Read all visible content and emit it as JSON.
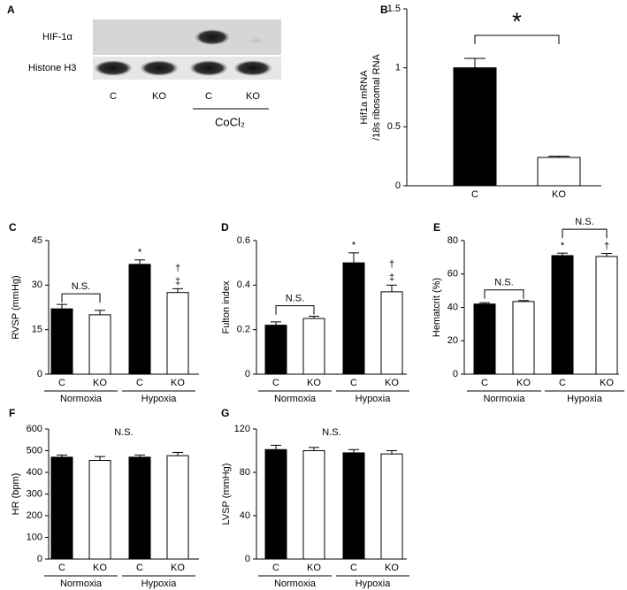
{
  "blot": {
    "panel": "A",
    "rows": [
      "HIF-1α",
      "Histone H3"
    ],
    "lanes": [
      "C",
      "KO",
      "C",
      "KO"
    ],
    "treatment": "CoCl₂"
  },
  "chart_data": [
    {
      "type": "bar",
      "panel": "B",
      "ylabel": [
        "Hif1a mRNA",
        "/18s ribosomal RNA"
      ],
      "categories": [
        "C",
        "KO"
      ],
      "values": [
        1.0,
        0.24
      ],
      "errors": [
        0.08,
        0.01
      ],
      "colors": [
        "#000000",
        "#ffffff"
      ],
      "ylim": [
        0,
        1.5
      ],
      "yticks": [
        0,
        0.5,
        1,
        1.5
      ],
      "marks": [
        [],
        []
      ],
      "brackets": [
        {
          "label": "*",
          "bars": [
            0,
            1
          ]
        }
      ],
      "groups": []
    },
    {
      "type": "bar",
      "panel": "C",
      "ylabel": [
        "RVSP (mmHg)"
      ],
      "categories": [
        "C",
        "KO",
        "C",
        "KO"
      ],
      "values": [
        22,
        20,
        37,
        27.5
      ],
      "errors": [
        1.5,
        1.5,
        1.5,
        1.3
      ],
      "colors": [
        "#000000",
        "#ffffff",
        "#000000",
        "#ffffff"
      ],
      "ylim": [
        0,
        45
      ],
      "yticks": [
        0,
        15,
        30,
        45
      ],
      "marks": [
        [],
        [],
        [
          "*"
        ],
        [
          "†",
          "‡"
        ]
      ],
      "brackets": [
        {
          "label": "N.S.",
          "bars": [
            0,
            1
          ]
        }
      ],
      "groups": [
        {
          "name": "Normoxia",
          "bars": [
            0,
            1
          ]
        },
        {
          "name": "Hypoxia",
          "bars": [
            2,
            3
          ]
        }
      ]
    },
    {
      "type": "bar",
      "panel": "D",
      "ylabel": [
        "Fulton index"
      ],
      "categories": [
        "C",
        "KO",
        "C",
        "KO"
      ],
      "values": [
        0.22,
        0.25,
        0.5,
        0.37
      ],
      "errors": [
        0.015,
        0.01,
        0.045,
        0.03
      ],
      "colors": [
        "#000000",
        "#ffffff",
        "#000000",
        "#ffffff"
      ],
      "ylim": [
        0,
        0.6
      ],
      "yticks": [
        0,
        0.2,
        0.4,
        0.6
      ],
      "marks": [
        [],
        [],
        [
          "*"
        ],
        [
          "†",
          "‡"
        ]
      ],
      "brackets": [
        {
          "label": "N.S.",
          "bars": [
            0,
            1
          ]
        }
      ],
      "groups": [
        {
          "name": "Normoxia",
          "bars": [
            0,
            1
          ]
        },
        {
          "name": "Hypoxia",
          "bars": [
            2,
            3
          ]
        }
      ]
    },
    {
      "type": "bar",
      "panel": "E",
      "ylabel": [
        "Hematcrit (%)"
      ],
      "categories": [
        "C",
        "KO",
        "C",
        "KO"
      ],
      "values": [
        42,
        43.5,
        71,
        70.5
      ],
      "errors": [
        0.8,
        0.6,
        1.5,
        1.8
      ],
      "colors": [
        "#000000",
        "#ffffff",
        "#000000",
        "#ffffff"
      ],
      "ylim": [
        0,
        80
      ],
      "yticks": [
        0,
        20,
        40,
        60,
        80
      ],
      "marks": [
        [],
        [],
        [
          "*"
        ],
        [
          "†"
        ]
      ],
      "brackets": [
        {
          "label": "N.S.",
          "bars": [
            0,
            1
          ]
        },
        {
          "label": "N.S.",
          "bars": [
            2,
            3
          ]
        }
      ],
      "groups": [
        {
          "name": "Normoxia",
          "bars": [
            0,
            1
          ]
        },
        {
          "name": "Hypoxia",
          "bars": [
            2,
            3
          ]
        }
      ]
    },
    {
      "type": "bar",
      "panel": "F",
      "ylabel": [
        "HR (bpm)"
      ],
      "categories": [
        "C",
        "KO",
        "C",
        "KO"
      ],
      "values": [
        470,
        455,
        470,
        477
      ],
      "errors": [
        10,
        18,
        10,
        15
      ],
      "colors": [
        "#000000",
        "#ffffff",
        "#000000",
        "#ffffff"
      ],
      "ylim": [
        0,
        600
      ],
      "yticks": [
        0,
        100,
        200,
        300,
        400,
        500,
        600
      ],
      "marks": [
        [],
        [],
        [],
        []
      ],
      "note": "N.S.",
      "brackets": [],
      "groups": [
        {
          "name": "Normoxia",
          "bars": [
            0,
            1
          ]
        },
        {
          "name": "Hypoxia",
          "bars": [
            2,
            3
          ]
        }
      ]
    },
    {
      "type": "bar",
      "panel": "G",
      "ylabel": [
        "LVSP (mmHg)"
      ],
      "categories": [
        "C",
        "KO",
        "C",
        "KO"
      ],
      "values": [
        101,
        100,
        98,
        97
      ],
      "errors": [
        4,
        3,
        3,
        3
      ],
      "colors": [
        "#000000",
        "#ffffff",
        "#000000",
        "#ffffff"
      ],
      "ylim": [
        0,
        120
      ],
      "yticks": [
        0,
        40,
        80,
        120
      ],
      "marks": [
        [],
        [],
        [],
        []
      ],
      "note": "N.S.",
      "brackets": [],
      "groups": [
        {
          "name": "Normoxia",
          "bars": [
            0,
            1
          ]
        },
        {
          "name": "Hypoxia",
          "bars": [
            2,
            3
          ]
        }
      ]
    }
  ]
}
